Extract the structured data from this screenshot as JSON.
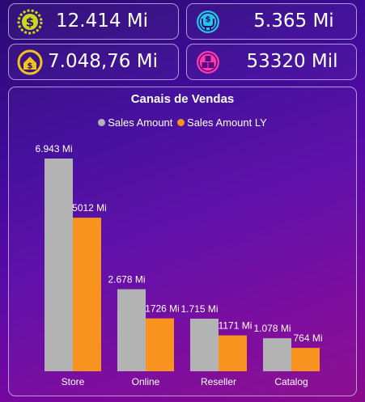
{
  "kpis": [
    {
      "value": "12.414 Mi",
      "icon": "dollar-coin-icon",
      "color": "#c9d81a"
    },
    {
      "value": "5.365 Mi",
      "icon": "hands-money-icon",
      "color": "#1ec8e8"
    },
    {
      "value": "7.048,76 Mi",
      "icon": "home-dollar-icon",
      "color": "#f2c318"
    },
    {
      "value": "53320 Mil",
      "icon": "boxes-icon",
      "color": "#ff3bb0"
    }
  ],
  "chart_data": {
    "type": "bar",
    "title": "Canais de Vendas",
    "categories": [
      "Store",
      "Online",
      "Reseller",
      "Catalog"
    ],
    "series": [
      {
        "name": "Sales Amount",
        "color": "#b3b3b3",
        "values": [
          6.943,
          2.678,
          1.715,
          1.078
        ],
        "labels": [
          "6.943 Mi",
          "2.678 Mi",
          "1.715 Mi",
          "1.078 Mi"
        ]
      },
      {
        "name": "Sales Amount LY",
        "color": "#f7931e",
        "values": [
          5.012,
          1.726,
          1.171,
          0.764
        ],
        "labels": [
          "5012 Mi",
          "1726 Mi",
          "1171 Mi",
          "764 Mi"
        ]
      }
    ],
    "unit": "Mi",
    "ylim": [
      0,
      6.943
    ],
    "legend_position": "top-center",
    "grid": false
  }
}
